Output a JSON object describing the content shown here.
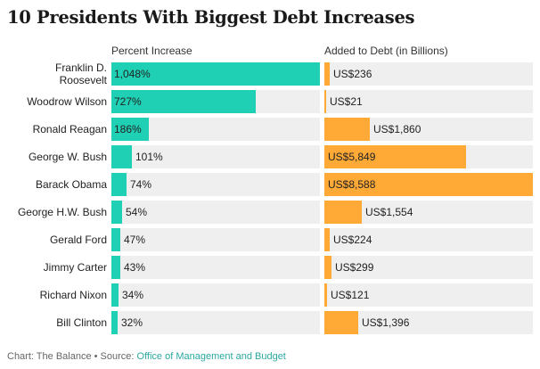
{
  "title": "10 Presidents With Biggest Debt Increases",
  "footer": {
    "prefix": "Chart: The Balance • Source: ",
    "source_link": "Office of Management and Budget"
  },
  "colors": {
    "percent_bar": "#1fd0b4",
    "debt_bar": "#ffa937",
    "track": "#efefef"
  },
  "chart_data": {
    "type": "bar",
    "orientation": "horizontal",
    "title": "10 Presidents With Biggest Debt Increases",
    "categories": [
      "Franklin D. Roosevelt",
      "Woodrow Wilson",
      "Ronald Reagan",
      "George W. Bush",
      "Barack Obama",
      "George H.W. Bush",
      "Gerald Ford",
      "Jimmy Carter",
      "Richard Nixon",
      "Bill Clinton"
    ],
    "category_labels": [
      [
        "Franklin D.",
        "Roosevelt"
      ],
      [
        "Woodrow Wilson"
      ],
      [
        "Ronald Reagan"
      ],
      [
        "George W. Bush"
      ],
      [
        "Barack Obama"
      ],
      [
        "George H.W. Bush"
      ],
      [
        "Gerald Ford"
      ],
      [
        "Jimmy Carter"
      ],
      [
        "Richard Nixon"
      ],
      [
        "Bill Clinton"
      ]
    ],
    "series": [
      {
        "name": "Percent Increase",
        "values": [
          1048,
          727,
          186,
          101,
          74,
          54,
          47,
          43,
          34,
          32
        ],
        "labels": [
          "1,048%",
          "727%",
          "186%",
          "101%",
          "74%",
          "54%",
          "47%",
          "43%",
          "34%",
          "32%"
        ],
        "max": 1048
      },
      {
        "name": "Added to Debt (in Billions)",
        "values": [
          236,
          21,
          1860,
          5849,
          8588,
          1554,
          224,
          299,
          121,
          1396
        ],
        "labels": [
          "US$236",
          "US$21",
          "US$1,860",
          "US$5,849",
          "US$8,588",
          "US$1,554",
          "US$224",
          "US$299",
          "US$121",
          "US$1,396"
        ],
        "max": 8588
      }
    ]
  }
}
